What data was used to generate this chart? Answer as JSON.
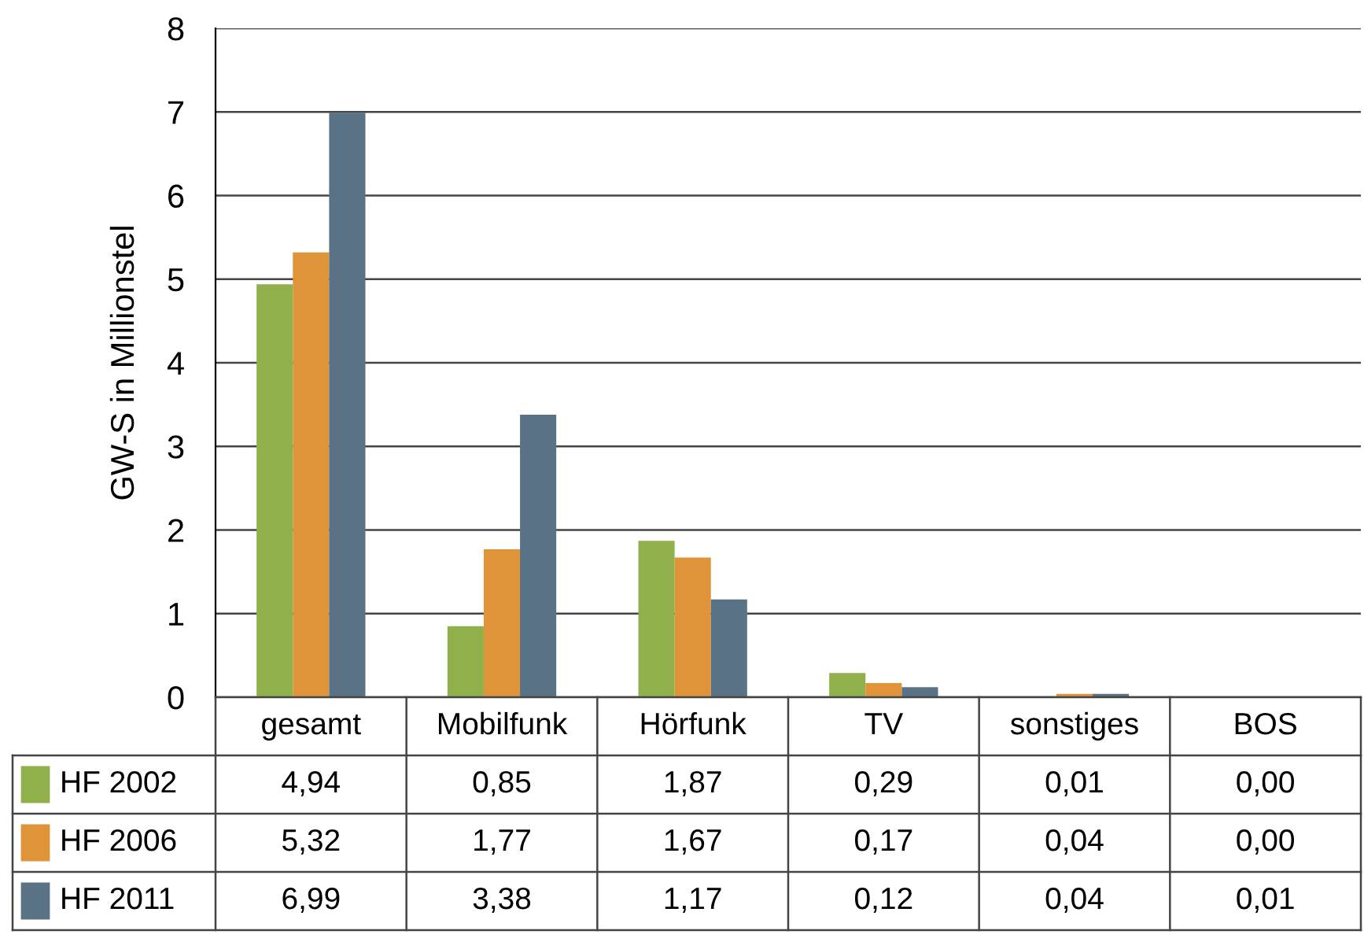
{
  "chart_data": {
    "type": "bar",
    "ylabel": "GW-S in Millionstel",
    "categories": [
      "gesamt",
      "Mobilfunk",
      "Hörfunk",
      "TV",
      "sonstiges",
      "BOS"
    ],
    "series": [
      {
        "name": "HF 2002",
        "color": "#8fb04a",
        "values": [
          4.94,
          0.85,
          1.87,
          0.29,
          0.01,
          0.0
        ],
        "value_labels": [
          "4,94",
          "0,85",
          "1,87",
          "0,29",
          "0,01",
          "0,00"
        ]
      },
      {
        "name": "HF 2006",
        "color": "#e0943a",
        "values": [
          5.32,
          1.77,
          1.67,
          0.17,
          0.04,
          0.0
        ],
        "value_labels": [
          "5,32",
          "1,77",
          "1,67",
          "0,17",
          "0,04",
          "0,00"
        ]
      },
      {
        "name": "HF 2011",
        "color": "#5a7285",
        "values": [
          6.99,
          3.38,
          1.17,
          0.12,
          0.04,
          0.01
        ],
        "value_labels": [
          "6,99",
          "3,38",
          "1,17",
          "0,12",
          "0,04",
          "0,01"
        ]
      }
    ],
    "ylim": [
      0,
      8
    ],
    "yticks": [
      0,
      1,
      2,
      3,
      4,
      5,
      6,
      7,
      8
    ],
    "grid": "y",
    "legend": "bottom left"
  }
}
